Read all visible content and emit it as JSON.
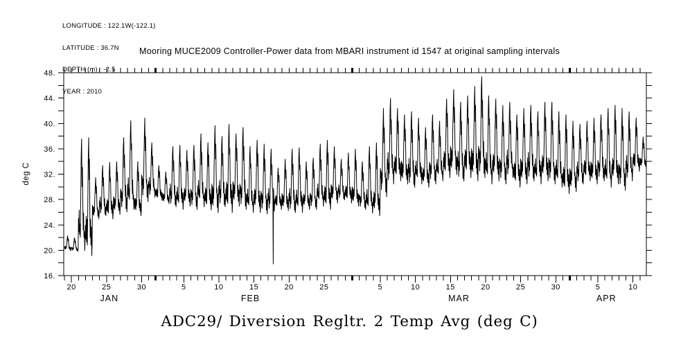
{
  "header": {
    "metadata_lines": [
      "LONGITUDE : 122.1W(-122.1)",
      "LATITUDE : 36.7N",
      "DEPTH (m) : -2.5",
      "YEAR : 2010"
    ]
  },
  "title": "Mooring MUCE2009 Controller-Power data from MBARI instrument id 1547 at original sampling intervals",
  "caption": "ADC29/ Diversion Regltr. 2 Temp Avg (deg C)",
  "chart_data": {
    "type": "line",
    "title": "Mooring MUCE2009 Controller-Power data from MBARI instrument id 1547 at original sampling intervals",
    "xlabel": "",
    "ylabel": "deg C",
    "ylim": [
      16,
      48
    ],
    "y_tick_step": 2,
    "y_labeled_ticks": [
      {
        "value": 48,
        "label": "48."
      },
      {
        "value": 44,
        "label": "44."
      },
      {
        "value": 40,
        "label": "40."
      },
      {
        "value": 36,
        "label": "36."
      },
      {
        "value": 32,
        "label": "32."
      },
      {
        "value": 28,
        "label": "28."
      },
      {
        "value": 24,
        "label": "24."
      },
      {
        "value": 20,
        "label": "20."
      },
      {
        "value": 16,
        "label": "16."
      }
    ],
    "line_color": "#000000",
    "grid": false,
    "legend": null,
    "x_start_date": "2010-01-19",
    "x_end_date": "2010-04-12",
    "x_domain_days": [
      -0.1,
      82.9
    ],
    "x_day_tick_count": 83,
    "x_labeled_day_ticks": [
      {
        "day": 1,
        "label": "20"
      },
      {
        "day": 6,
        "label": "25"
      },
      {
        "day": 11,
        "label": "30"
      },
      {
        "day": 17,
        "label": "5"
      },
      {
        "day": 22,
        "label": "10"
      },
      {
        "day": 27,
        "label": "15"
      },
      {
        "day": 32,
        "label": "20"
      },
      {
        "day": 37,
        "label": "25"
      },
      {
        "day": 45,
        "label": "5"
      },
      {
        "day": 50,
        "label": "10"
      },
      {
        "day": 55,
        "label": "15"
      },
      {
        "day": 60,
        "label": "20"
      },
      {
        "day": 65,
        "label": "25"
      },
      {
        "day": 70,
        "label": "30"
      },
      {
        "day": 76,
        "label": "5"
      },
      {
        "day": 81,
        "label": "10"
      }
    ],
    "x_month_boundary_days": [
      13,
      41,
      72
    ],
    "x_month_labels": [
      {
        "label": "JAN",
        "center_day": 6.4
      },
      {
        "label": "FEB",
        "center_day": 26.5
      },
      {
        "label": "MAR",
        "center_day": 56.2
      },
      {
        "label": "APR",
        "center_day": 77.2
      }
    ],
    "series_name": "ADC29/ Diversion Regltr. 2 Temp Avg",
    "daily_series": [
      {
        "date": "Jan 19",
        "min": 19.9,
        "max": 22.3
      },
      {
        "date": "Jan 20",
        "min": 19.8,
        "max": 22.0
      },
      {
        "date": "Jan 21",
        "min": 19.9,
        "max": 37.6
      },
      {
        "date": "Jan 22",
        "min": 19.1,
        "max": 37.8
      },
      {
        "date": "Jan 23",
        "min": 24.9,
        "max": 31.5
      },
      {
        "date": "Jan 24",
        "min": 25.4,
        "max": 33.4
      },
      {
        "date": "Jan 25",
        "min": 24.9,
        "max": 33.9
      },
      {
        "date": "Jan 26",
        "min": 25.6,
        "max": 34.0
      },
      {
        "date": "Jan 27",
        "min": 26.0,
        "max": 37.8
      },
      {
        "date": "Jan 28",
        "min": 26.4,
        "max": 40.5
      },
      {
        "date": "Jan 29",
        "min": 25.4,
        "max": 34.0
      },
      {
        "date": "Jan 30",
        "min": 27.6,
        "max": 40.9
      },
      {
        "date": "Jan 31",
        "min": 28.3,
        "max": 37.0
      },
      {
        "date": "Feb 1",
        "min": 27.8,
        "max": 33.4
      },
      {
        "date": "Feb 2",
        "min": 27.3,
        "max": 32.4
      },
      {
        "date": "Feb 3",
        "min": 26.8,
        "max": 36.4
      },
      {
        "date": "Feb 4",
        "min": 26.4,
        "max": 36.6
      },
      {
        "date": "Feb 5",
        "min": 26.9,
        "max": 35.8
      },
      {
        "date": "Feb 6",
        "min": 26.4,
        "max": 36.6
      },
      {
        "date": "Feb 7",
        "min": 26.8,
        "max": 38.4
      },
      {
        "date": "Feb 8",
        "min": 26.3,
        "max": 37.0
      },
      {
        "date": "Feb 9",
        "min": 25.9,
        "max": 39.7
      },
      {
        "date": "Feb 10",
        "min": 26.8,
        "max": 38.0
      },
      {
        "date": "Feb 11",
        "min": 25.9,
        "max": 39.9
      },
      {
        "date": "Feb 12",
        "min": 26.9,
        "max": 38.4
      },
      {
        "date": "Feb 13",
        "min": 26.4,
        "max": 39.4
      },
      {
        "date": "Feb 14",
        "min": 25.9,
        "max": 36.4
      },
      {
        "date": "Feb 15",
        "min": 25.9,
        "max": 37.4
      },
      {
        "date": "Feb 16",
        "min": 25.7,
        "max": 36.8
      },
      {
        "date": "Feb 17",
        "min": 26.1,
        "max": 36.0,
        "dip": 17.8
      },
      {
        "date": "Feb 18",
        "min": 26.4,
        "max": 33.0
      },
      {
        "date": "Feb 19",
        "min": 26.2,
        "max": 34.4
      },
      {
        "date": "Feb 20",
        "min": 25.9,
        "max": 36.0
      },
      {
        "date": "Feb 21",
        "min": 25.9,
        "max": 36.2
      },
      {
        "date": "Feb 22",
        "min": 26.4,
        "max": 34.0
      },
      {
        "date": "Feb 23",
        "min": 26.4,
        "max": 34.6
      },
      {
        "date": "Feb 24",
        "min": 26.9,
        "max": 36.8
      },
      {
        "date": "Feb 25",
        "min": 26.4,
        "max": 37.4
      },
      {
        "date": "Feb 26",
        "min": 27.4,
        "max": 36.4
      },
      {
        "date": "Feb 27",
        "min": 27.9,
        "max": 34.4
      },
      {
        "date": "Feb 28",
        "min": 27.4,
        "max": 35.4
      },
      {
        "date": "Mar 1",
        "min": 26.9,
        "max": 36.0
      },
      {
        "date": "Mar 2",
        "min": 26.4,
        "max": 34.0
      },
      {
        "date": "Mar 3",
        "min": 25.8,
        "max": 36.4
      },
      {
        "date": "Mar 4",
        "min": 25.4,
        "max": 37.0
      },
      {
        "date": "Mar 5",
        "min": 28.4,
        "max": 42.4
      },
      {
        "date": "Mar 6",
        "min": 30.4,
        "max": 44.0
      },
      {
        "date": "Mar 7",
        "min": 30.9,
        "max": 42.4
      },
      {
        "date": "Mar 8",
        "min": 30.4,
        "max": 41.4
      },
      {
        "date": "Mar 9",
        "min": 29.9,
        "max": 41.9
      },
      {
        "date": "Mar 10",
        "min": 30.4,
        "max": 40.9
      },
      {
        "date": "Mar 11",
        "min": 29.9,
        "max": 39.4
      },
      {
        "date": "Mar 12",
        "min": 30.4,
        "max": 41.4
      },
      {
        "date": "Mar 13",
        "min": 30.9,
        "max": 40.4
      },
      {
        "date": "Mar 14",
        "min": 31.4,
        "max": 43.9
      },
      {
        "date": "Mar 15",
        "min": 31.9,
        "max": 45.4
      },
      {
        "date": "Mar 16",
        "min": 30.9,
        "max": 43.4
      },
      {
        "date": "Mar 17",
        "min": 31.4,
        "max": 44.4
      },
      {
        "date": "Mar 18",
        "min": 30.9,
        "max": 45.9
      },
      {
        "date": "Mar 19",
        "min": 31.4,
        "max": 47.4
      },
      {
        "date": "Mar 20",
        "min": 30.4,
        "max": 44.4
      },
      {
        "date": "Mar 21",
        "min": 30.9,
        "max": 43.9
      },
      {
        "date": "Mar 22",
        "min": 30.4,
        "max": 42.9
      },
      {
        "date": "Mar 23",
        "min": 31.4,
        "max": 43.4
      },
      {
        "date": "Mar 24",
        "min": 29.9,
        "max": 41.4
      },
      {
        "date": "Mar 25",
        "min": 30.4,
        "max": 42.4
      },
      {
        "date": "Mar 26",
        "min": 30.9,
        "max": 42.9
      },
      {
        "date": "Mar 27",
        "min": 30.4,
        "max": 41.9
      },
      {
        "date": "Mar 28",
        "min": 30.9,
        "max": 43.4
      },
      {
        "date": "Mar 29",
        "min": 30.4,
        "max": 43.4
      },
      {
        "date": "Mar 30",
        "min": 29.9,
        "max": 41.9
      },
      {
        "date": "Mar 31",
        "min": 28.9,
        "max": 41.4
      },
      {
        "date": "Apr 1",
        "min": 29.2,
        "max": 40.4
      },
      {
        "date": "Apr 2",
        "min": 30.4,
        "max": 39.9
      },
      {
        "date": "Apr 3",
        "min": 30.9,
        "max": 40.4
      },
      {
        "date": "Apr 4",
        "min": 30.4,
        "max": 40.9
      },
      {
        "date": "Apr 5",
        "min": 30.9,
        "max": 41.4
      },
      {
        "date": "Apr 6",
        "min": 29.9,
        "max": 42.4
      },
      {
        "date": "Apr 7",
        "min": 30.4,
        "max": 42.9
      },
      {
        "date": "Apr 8",
        "min": 29.4,
        "max": 42.4
      },
      {
        "date": "Apr 9",
        "min": 30.9,
        "max": 41.9
      },
      {
        "date": "Apr 10",
        "min": 32.4,
        "max": 40.9
      },
      {
        "date": "Apr 11",
        "min": 32.9,
        "max": 37.9
      }
    ]
  }
}
